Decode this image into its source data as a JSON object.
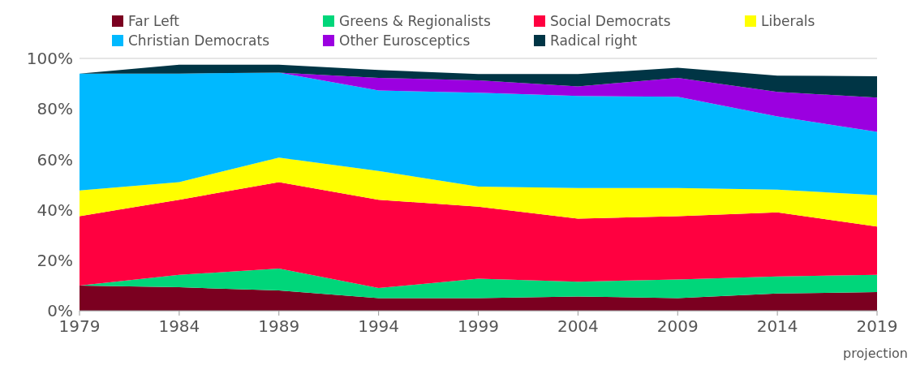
{
  "chart_data": {
    "type": "area",
    "stacked": true,
    "x": [
      1979,
      1984,
      1989,
      1994,
      1999,
      2004,
      2009,
      2014,
      2019
    ],
    "series": [
      {
        "name": "Far Left",
        "color": "#7b0020",
        "values": [
          10,
          9.3,
          8,
          5,
          5,
          5.6,
          5,
          6.8,
          7.4
        ]
      },
      {
        "name": "Greens & Regionalists",
        "color": "#00d67a",
        "values": [
          0,
          4.9,
          8.7,
          4,
          7.7,
          5.9,
          7.4,
          6.8,
          6.8
        ]
      },
      {
        "name": "Social Democrats",
        "color": "#ff0040",
        "values": [
          27.5,
          29.8,
          34.3,
          35,
          28.5,
          25,
          25.1,
          25.4,
          19.2
        ]
      },
      {
        "name": "Liberals",
        "color": "#ffff00",
        "values": [
          10.2,
          7,
          9.7,
          11.4,
          8,
          12.1,
          11.1,
          9,
          12.4
        ]
      },
      {
        "name": "Christian Democrats",
        "color": "#00b9ff",
        "values": [
          46.3,
          43,
          33.7,
          31.9,
          37.2,
          36.5,
          36.2,
          29,
          25.1
        ]
      },
      {
        "name": "Other Eurosceptics",
        "color": "#9b00e0",
        "values": [
          0,
          0,
          0,
          5,
          4.9,
          3.8,
          7.5,
          9.7,
          13.6
        ]
      },
      {
        "name": "Radical right",
        "color": "#003545",
        "values": [
          0,
          3.5,
          3.1,
          3.1,
          2.5,
          4.9,
          4,
          6.5,
          8.4
        ]
      }
    ],
    "xlim": [
      1979,
      2019
    ],
    "xticks": [
      1979,
      1984,
      1989,
      1994,
      1999,
      2004,
      2009,
      2014,
      2019
    ],
    "annotations": [
      "projection"
    ],
    "ylim": [
      0,
      100
    ],
    "yticks": [
      {
        "value": 0,
        "label": "0%"
      },
      {
        "value": 20,
        "label": "20%"
      },
      {
        "value": 40,
        "label": "40%"
      },
      {
        "value": 60,
        "label": "60%"
      },
      {
        "value": 80,
        "label": "80%"
      },
      {
        "value": 100,
        "label": "100%"
      }
    ],
    "grid": "y",
    "legend": "top"
  }
}
